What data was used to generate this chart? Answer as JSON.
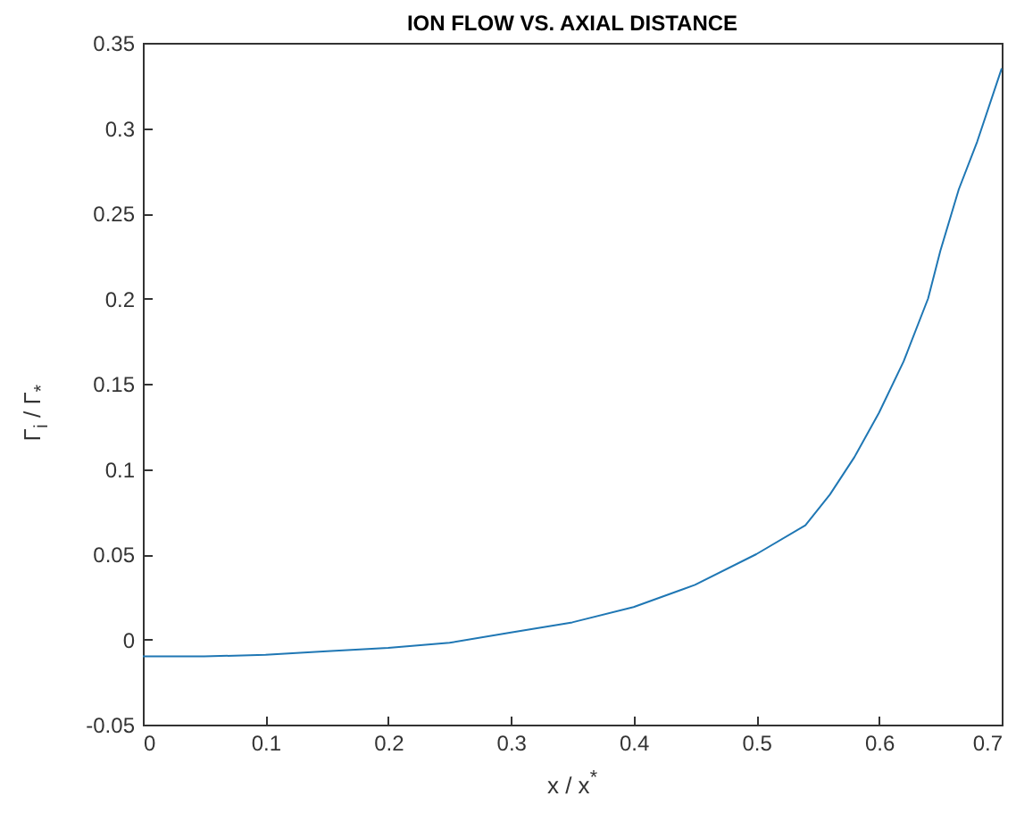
{
  "chart_data": {
    "type": "line",
    "title": "ION FLOW VS. AXIAL DISTANCE",
    "xlabel": "x / x$^{*}$",
    "ylabel": "Γ$_{i}$ / Γ$_{*}$",
    "x": [
      0,
      0.05,
      0.1,
      0.15,
      0.2,
      0.25,
      0.3,
      0.35,
      0.4,
      0.45,
      0.5,
      0.54,
      0.56,
      0.58,
      0.6,
      0.62,
      0.64,
      0.65,
      0.665,
      0.68,
      0.7
    ],
    "series": [
      {
        "color": "#1f77b4",
        "values": [
          -0.01,
          -0.01,
          -0.009,
          -0.007,
          -0.005,
          -0.002,
          0.004,
          0.01,
          0.019,
          0.032,
          0.05,
          0.067,
          0.085,
          0.107,
          0.133,
          0.163,
          0.2,
          0.228,
          0.264,
          0.292,
          0.335
        ]
      }
    ],
    "xlim": [
      0,
      0.7
    ],
    "ylim": [
      -0.05,
      0.35
    ],
    "xticks": [
      0,
      0.1,
      0.2,
      0.3,
      0.4,
      0.5,
      0.6,
      0.7
    ],
    "yticks": [
      -0.05,
      0,
      0.05,
      0.1,
      0.15,
      0.2,
      0.25,
      0.3,
      0.35
    ],
    "grid": false,
    "legend": false,
    "line_style": "solid",
    "marker": "none"
  }
}
